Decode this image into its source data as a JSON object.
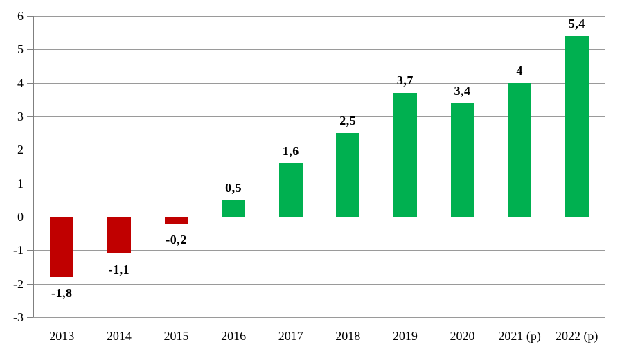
{
  "chart_data": {
    "type": "bar",
    "title": "",
    "xlabel": "",
    "ylabel": "",
    "categories": [
      "2013",
      "2014",
      "2015",
      "2016",
      "2017",
      "2018",
      "2019",
      "2020",
      "2021 (p)",
      "2022 (p)"
    ],
    "values": [
      -1.8,
      -1.1,
      -0.2,
      0.5,
      1.6,
      2.5,
      3.7,
      3.4,
      4,
      5.4
    ],
    "value_labels": [
      "-1,8",
      "-1,1",
      "-0,2",
      "0,5",
      "1,6",
      "2,5",
      "3,7",
      "3,4",
      "4",
      "5,4"
    ],
    "yticks": [
      6,
      5,
      4,
      3,
      2,
      1,
      0,
      -1,
      -2,
      -3
    ],
    "ytick_labels": [
      "6",
      "5",
      "4",
      "3",
      "2",
      "1",
      "0",
      "-1",
      "-2",
      "-3"
    ],
    "ylim": [
      -3,
      6
    ],
    "grid": true,
    "legend": false,
    "number_format": "decimal-comma",
    "colors": {
      "positive_bar": "#00B050",
      "negative_bar": "#C00000",
      "gridline": "#9A9A9A",
      "axis": "#7F7F7F",
      "text": "#000000"
    }
  }
}
